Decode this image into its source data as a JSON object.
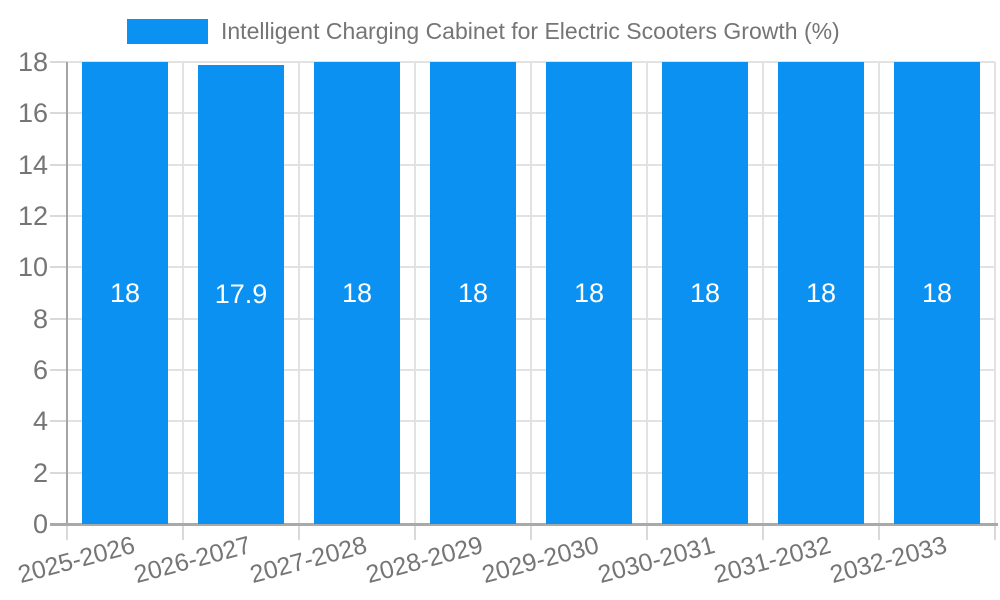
{
  "chart_data": {
    "type": "bar",
    "title": "Intelligent Charging Cabinet for Electric Scooters Growth (%)",
    "categories": [
      "2025-2026",
      "2026-2027",
      "2027-2028",
      "2028-2029",
      "2029-2030",
      "2030-2031",
      "2031-2032",
      "2032-2033"
    ],
    "values": [
      18,
      17.9,
      18,
      18,
      18,
      18,
      18,
      18
    ],
    "bar_labels": [
      "18",
      "17.9",
      "18",
      "18",
      "18",
      "18",
      "18",
      "18"
    ],
    "ylim": [
      0,
      18
    ],
    "yticks": [
      0,
      2,
      4,
      6,
      8,
      10,
      12,
      14,
      16,
      18
    ],
    "grid": true,
    "legend_position": "top",
    "xlabel": "",
    "ylabel": ""
  },
  "legend": {
    "items": [
      {
        "label": "Intelligent Charging Cabinet for Electric Scooters Growth (%)",
        "color": "#0a91f2"
      }
    ]
  },
  "colors": {
    "background": "#ffffff",
    "bar": "#0a91f2",
    "grid": "#e2e2e2",
    "axis": "#a9a9a9",
    "tick": "#d9d9d9",
    "tick_label": "#757575",
    "value_label": "#ffffff",
    "legend_text": "#757575"
  }
}
